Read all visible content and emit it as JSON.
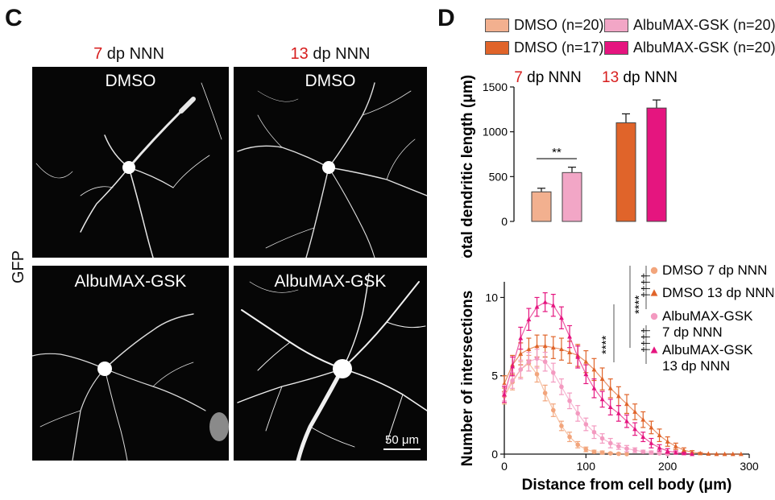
{
  "panel_c": {
    "letter": "C",
    "col_headers": [
      {
        "num": "7",
        "rest": " dp NNN"
      },
      {
        "num": "13",
        "rest": " dp NNN"
      }
    ],
    "row_label": "GFP",
    "images": [
      {
        "label": "DMSO"
      },
      {
        "label": "DMSO"
      },
      {
        "label": "AlbuMAX-GSK"
      },
      {
        "label": "AlbuMAX-GSK"
      }
    ],
    "scale_bar": "50 μm"
  },
  "panel_d": {
    "letter": "D",
    "legend": [
      {
        "label": "DMSO (n=20)",
        "color": "#f2b08f"
      },
      {
        "label": "AlbuMAX-GSK (n=20)",
        "color": "#f2a6c6"
      },
      {
        "label": "DMSO (n=17)",
        "color": "#e0642a"
      },
      {
        "label": "AlbuMAX-GSK (n=20)",
        "color": "#e5157f"
      }
    ]
  },
  "chart_data": [
    {
      "type": "bar",
      "ylabel": "Total dendritic length (μm)",
      "ylim": [
        0,
        1500
      ],
      "yticks": [
        "0",
        "500",
        "1000",
        "1500"
      ],
      "group_labels": [
        {
          "num": "7",
          "rest": " dp NNN"
        },
        {
          "num": "13",
          "rest": " dp NNN"
        }
      ],
      "series": [
        {
          "name": "DMSO 7 dp NNN",
          "value": 330,
          "error": 40,
          "color": "#f2b08f"
        },
        {
          "name": "AlbuMAX-GSK 7 dp NNN",
          "value": 545,
          "error": 60,
          "color": "#f2a6c6"
        },
        {
          "name": "DMSO 13 dp NNN",
          "value": 1100,
          "error": 100,
          "color": "#e0642a"
        },
        {
          "name": "AlbuMAX-GSK 13 dp NNN",
          "value": 1265,
          "error": 90,
          "color": "#e5157f"
        }
      ],
      "significance": "**"
    },
    {
      "type": "line",
      "xlabel": "Distance from cell body (μm)",
      "ylabel": "Number of intersections",
      "xlim": [
        0,
        300
      ],
      "ylim": [
        0,
        11
      ],
      "xticks": [
        "0",
        "100",
        "200",
        "300"
      ],
      "yticks": [
        "0",
        "5",
        "10"
      ],
      "series": [
        {
          "name": "DMSO 7 dp NNN",
          "marker": "circle",
          "color": "#f2a57c",
          "x": [
            0,
            10,
            20,
            30,
            40,
            50,
            60,
            70,
            80,
            90,
            100,
            110,
            120,
            130,
            140,
            150
          ],
          "y": [
            3.7,
            4.6,
            5.4,
            5.8,
            5.1,
            3.9,
            2.8,
            1.8,
            1.1,
            0.6,
            0.3,
            0.15,
            0.1,
            0.05,
            0.02,
            0
          ],
          "err": [
            0.5,
            0.5,
            0.5,
            0.5,
            0.5,
            0.5,
            0.4,
            0.3,
            0.3,
            0.2,
            0.15,
            0.1,
            0.1,
            0.05,
            0.05,
            0
          ]
        },
        {
          "name": "DMSO 13 dp NNN",
          "marker": "triangle",
          "color": "#e0642a",
          "x": [
            0,
            10,
            20,
            30,
            40,
            50,
            60,
            70,
            80,
            90,
            100,
            110,
            120,
            130,
            140,
            150,
            160,
            170,
            180,
            190,
            200,
            210,
            220,
            230,
            240,
            250,
            260,
            270,
            280,
            290
          ],
          "y": [
            4.5,
            5.7,
            6.4,
            6.7,
            6.9,
            6.9,
            6.8,
            6.7,
            6.5,
            6.3,
            5.9,
            5.4,
            4.8,
            4.2,
            3.7,
            3.2,
            2.7,
            2.2,
            1.7,
            1.2,
            0.8,
            0.5,
            0.25,
            0.12,
            0.05,
            0.02,
            0,
            0,
            0,
            0
          ],
          "err": [
            0.5,
            0.6,
            0.7,
            0.7,
            0.7,
            0.7,
            0.7,
            0.7,
            0.7,
            0.7,
            0.7,
            0.7,
            0.7,
            0.6,
            0.6,
            0.6,
            0.5,
            0.5,
            0.4,
            0.4,
            0.3,
            0.2,
            0.15,
            0.1,
            0.05,
            0,
            0,
            0,
            0,
            0
          ]
        },
        {
          "name": "AlbuMAX-GSK 7 dp NNN",
          "marker": "circle",
          "color": "#f39ac0",
          "x": [
            0,
            10,
            20,
            30,
            40,
            50,
            60,
            70,
            80,
            90,
            100,
            110,
            120,
            130,
            140,
            150,
            160,
            170,
            180,
            190,
            200
          ],
          "y": [
            3.9,
            4.7,
            5.4,
            5.9,
            6.1,
            5.9,
            5.2,
            4.3,
            3.4,
            2.6,
            1.9,
            1.4,
            1.0,
            0.7,
            0.5,
            0.35,
            0.25,
            0.15,
            0.1,
            0.05,
            0
          ],
          "err": [
            0.5,
            0.5,
            0.6,
            0.6,
            0.6,
            0.6,
            0.6,
            0.5,
            0.5,
            0.5,
            0.4,
            0.4,
            0.3,
            0.3,
            0.2,
            0.2,
            0.15,
            0.1,
            0.1,
            0.05,
            0
          ]
        },
        {
          "name": "AlbuMAX-GSK 13 dp NNN",
          "marker": "triangle",
          "color": "#e5157f",
          "x": [
            0,
            10,
            20,
            30,
            40,
            50,
            60,
            70,
            80,
            90,
            100,
            110,
            120,
            130,
            140,
            150,
            160,
            170,
            180,
            190,
            200,
            210,
            220,
            230
          ],
          "y": [
            3.8,
            5.6,
            7.4,
            8.6,
            9.4,
            9.7,
            9.5,
            8.7,
            7.5,
            6.2,
            5.1,
            4.2,
            3.5,
            3.0,
            2.6,
            2.1,
            1.6,
            1.1,
            0.7,
            0.4,
            0.2,
            0.1,
            0.05,
            0
          ],
          "err": [
            0.5,
            0.6,
            0.7,
            0.7,
            0.6,
            0.6,
            0.7,
            0.7,
            0.7,
            0.7,
            0.6,
            0.6,
            0.5,
            0.5,
            0.5,
            0.4,
            0.4,
            0.3,
            0.3,
            0.2,
            0.15,
            0.1,
            0.05,
            0
          ]
        }
      ],
      "legend": [
        {
          "label": "DMSO 7 dp NNN",
          "marker": "circle",
          "color": "#f2a57c"
        },
        {
          "label": "DMSO 13 dp NNN",
          "marker": "triangle",
          "color": "#e0642a"
        },
        {
          "label": "AlbuMAX-GSK",
          "label2": "7 dp NNN",
          "marker": "circle",
          "color": "#f39ac0"
        },
        {
          "label": "AlbuMAX-GSK",
          "label2": "13 dp NNN",
          "marker": "triangle",
          "color": "#e5157f"
        }
      ],
      "significance": {
        "stars_a": "****",
        "stars_b": "****",
        "daggers": "††††"
      }
    }
  ]
}
